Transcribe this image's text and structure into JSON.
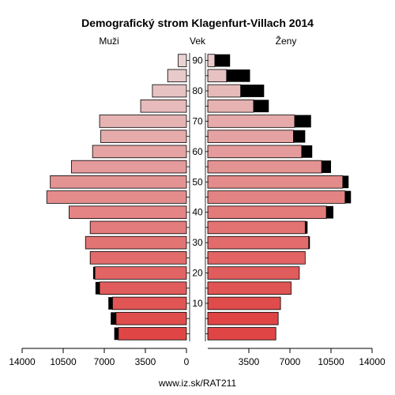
{
  "chart_data": {
    "type": "bar",
    "title": "Demografický strom Klagenfurt-Villach 2014",
    "left_label": "Muži",
    "center_label": "Vek",
    "right_label": "Ženy",
    "source": "www.iz.sk/RAT211",
    "age_groups": [
      "0-4",
      "5-9",
      "10-14",
      "15-19",
      "20-24",
      "25-29",
      "30-34",
      "35-39",
      "40-44",
      "45-49",
      "50-54",
      "55-59",
      "60-64",
      "65-69",
      "70-74",
      "75-79",
      "80-84",
      "85-89",
      "90+"
    ],
    "age_tick_labels": [
      "10",
      "20",
      "30",
      "40",
      "50",
      "60",
      "70",
      "80",
      "90"
    ],
    "x_tick_values": [
      14000,
      10500,
      7000,
      3500,
      0,
      3500,
      7000,
      10500,
      14000
    ],
    "xlim": [
      0,
      14000
    ],
    "series": [
      {
        "name": "Muži",
        "values": [
          5800,
          6000,
          6300,
          7400,
          7800,
          8200,
          8600,
          8200,
          10000,
          11900,
          11600,
          9800,
          8000,
          7300,
          7400,
          3900,
          2900,
          1600,
          700
        ],
        "surplus": [
          350,
          450,
          350,
          350,
          150,
          0,
          0,
          0,
          0,
          0,
          0,
          0,
          0,
          0,
          0,
          0,
          0,
          0,
          0
        ]
      },
      {
        "name": "Ženy",
        "values": [
          5800,
          6000,
          6200,
          7100,
          7800,
          8300,
          8600,
          8300,
          10100,
          11700,
          11500,
          9700,
          8000,
          7300,
          7400,
          3900,
          2800,
          1600,
          600
        ],
        "surplus": [
          0,
          0,
          0,
          0,
          0,
          0,
          100,
          200,
          600,
          500,
          500,
          800,
          900,
          1000,
          1400,
          1300,
          2000,
          2000,
          1300
        ]
      }
    ],
    "colors": {
      "young": "#e04545",
      "old": "#e8d2d2",
      "surplus": "#000000",
      "axis": "#000000"
    }
  }
}
